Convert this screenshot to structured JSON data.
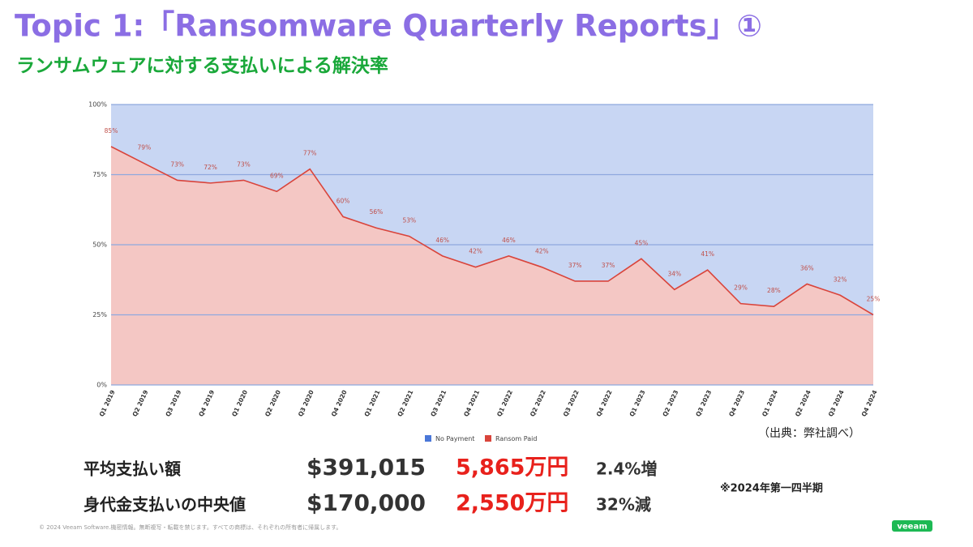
{
  "title": "Topic 1:「Ransomware Quarterly Reports」①",
  "subtitle": "ランサムウェアに対する支払いによる解決率",
  "chart_data": {
    "type": "stacked_area",
    "categories": [
      "Q1 2019",
      "Q2 2019",
      "Q3 2019",
      "Q4 2019",
      "Q1 2020",
      "Q2 2020",
      "Q3 2020",
      "Q4 2020",
      "Q1 2021",
      "Q2 2021",
      "Q3 2021",
      "Q4 2021",
      "Q1 2022",
      "Q2 2022",
      "Q3 2022",
      "Q4 2022",
      "Q1 2023",
      "Q2 2023",
      "Q3 2023",
      "Q4 2023",
      "Q1 2024",
      "Q2 2024",
      "Q3 2024",
      "Q4 2024"
    ],
    "series": [
      {
        "name": "Ransom Paid",
        "color": "#d9443b",
        "values": [
          85,
          79,
          73,
          72,
          73,
          69,
          77,
          60,
          56,
          53,
          46,
          42,
          46,
          42,
          37,
          37,
          45,
          34,
          41,
          29,
          28,
          36,
          32,
          25
        ],
        "value_labels": [
          "85%",
          "79%",
          "73%",
          "72%",
          "73%",
          "69%",
          "77%",
          "60%",
          "56%",
          "53%",
          "46%",
          "42%",
          "46%",
          "42%",
          "37%",
          "37%",
          "45%",
          "34%",
          "41%",
          "29%",
          "28%",
          "36%",
          "32%",
          "25%"
        ]
      },
      {
        "name": "No Payment",
        "color": "#4a77d8",
        "values": [
          15,
          21,
          27,
          28,
          27,
          31,
          23,
          40,
          44,
          47,
          54,
          58,
          54,
          58,
          63,
          63,
          55,
          66,
          59,
          71,
          72,
          64,
          68,
          75
        ]
      }
    ],
    "ylim": [
      0,
      100
    ],
    "yticks": [
      {
        "value": 0,
        "label": "0%"
      },
      {
        "value": 25,
        "label": "25%"
      },
      {
        "value": 50,
        "label": "50%"
      },
      {
        "value": 75,
        "label": "75%"
      },
      {
        "value": 100,
        "label": "100%"
      }
    ],
    "grid": true,
    "legend": "bottom"
  },
  "source": "（出典：弊社調べ）",
  "stats": [
    {
      "label": "平均支払い額",
      "usd": "$391,015",
      "jpy": "5,865万円",
      "change": "2.4%増"
    },
    {
      "label": "身代金支払いの中央値",
      "usd": "$170,000",
      "jpy": "2,550万円",
      "change": "32%減"
    }
  ],
  "note": "※2024年第一四半期",
  "footer": "© 2024 Veeam Software.機密情報。無断複写・転載を禁じます。すべての商標は、それぞれの所有者に帰属します。",
  "logo": "veeam"
}
